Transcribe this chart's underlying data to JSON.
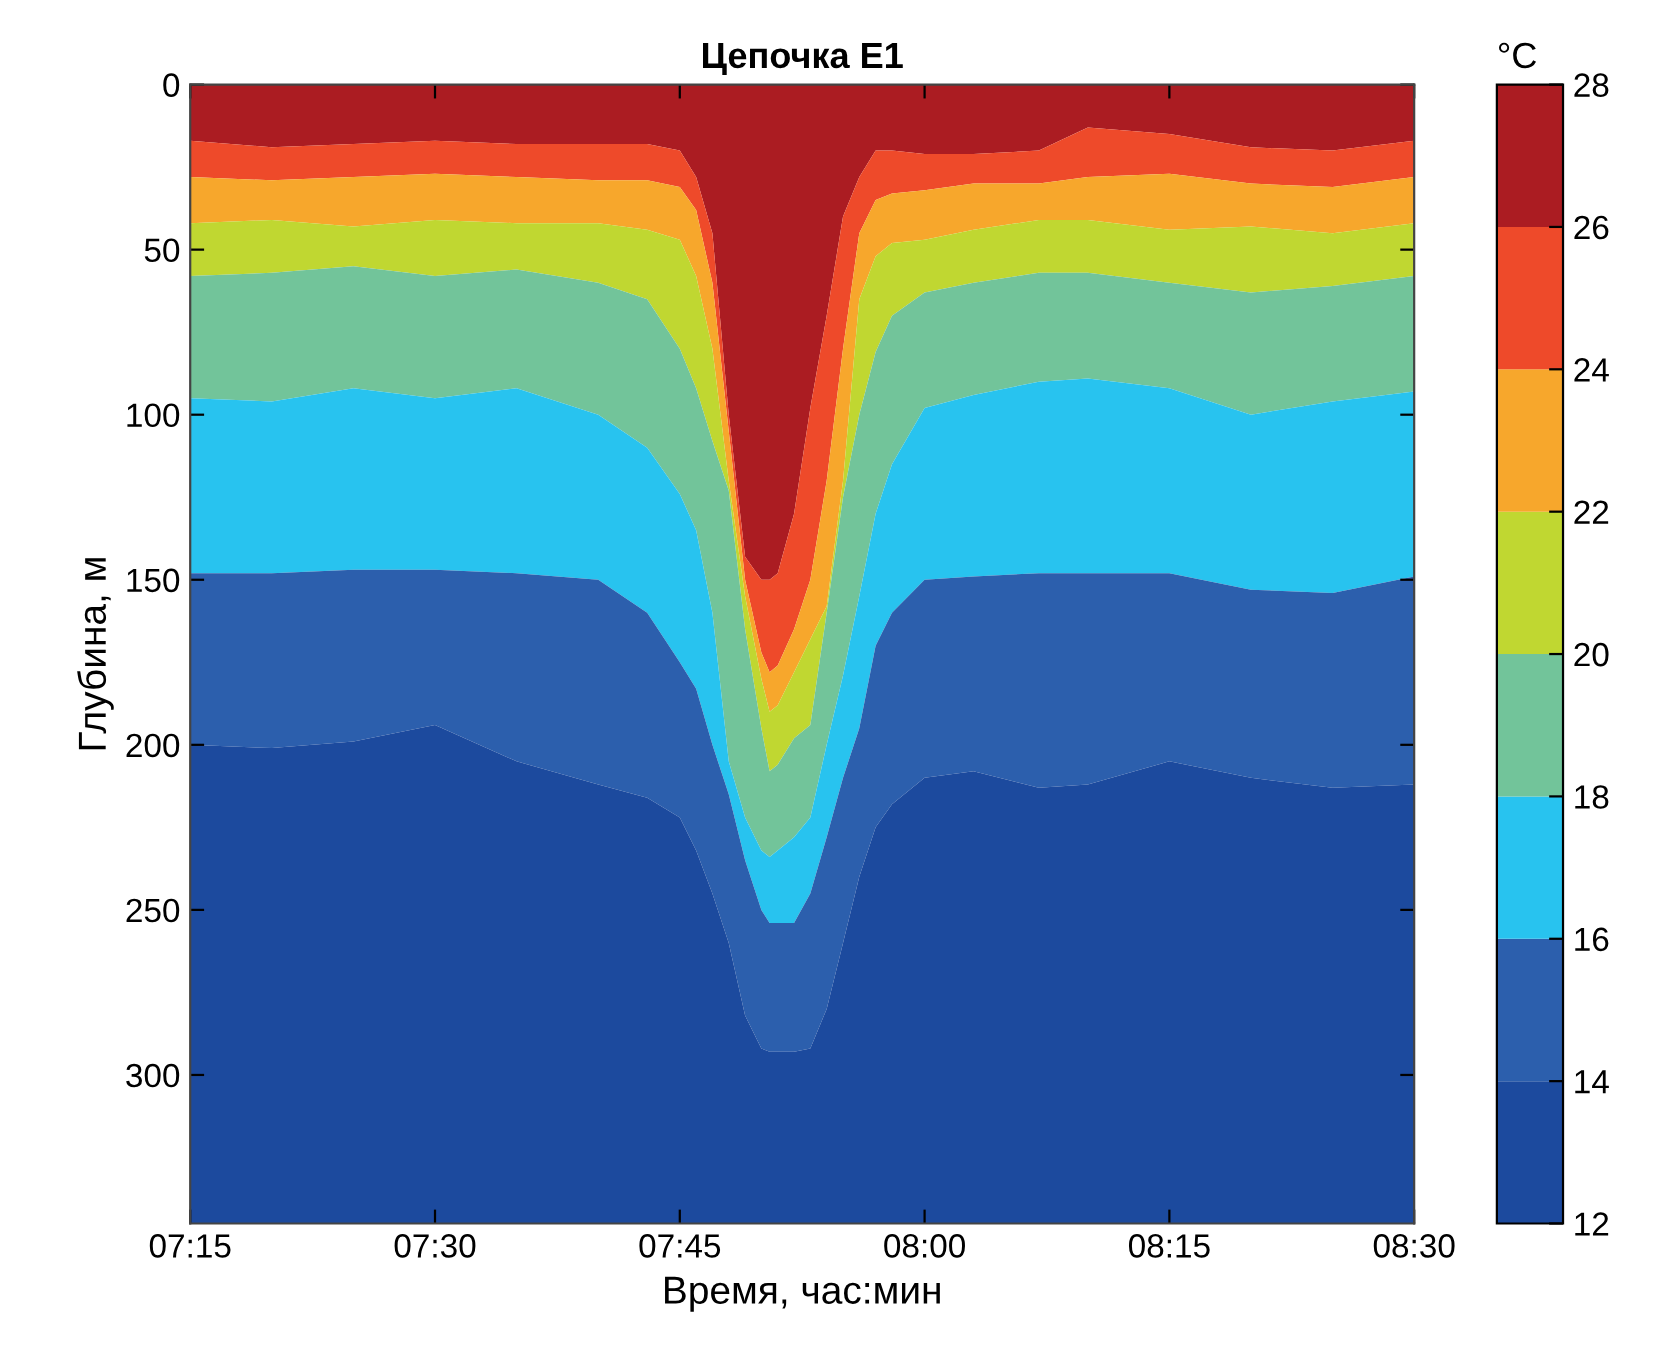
{
  "chart_data": {
    "type": "area",
    "title": "Цепочка E1",
    "xlabel": "Время, час:мин",
    "ylabel": "Глубина, м",
    "clabel": "°C",
    "x": [
      7.25,
      7.3333,
      7.4167,
      7.5,
      7.5833,
      7.6667,
      7.7167,
      7.75,
      7.7667,
      7.7833,
      7.8,
      7.8167,
      7.8333,
      7.8417,
      7.85,
      7.8667,
      7.8833,
      7.9,
      7.9167,
      7.9333,
      7.95,
      7.9667,
      8.0,
      8.05,
      8.1167,
      8.1667,
      8.25,
      8.3333,
      8.4167,
      8.5
    ],
    "series": [
      {
        "color": "#ab1c22",
        "values": [
          17,
          19,
          18,
          17,
          18,
          18,
          18,
          20,
          28,
          45,
          100,
          143,
          150,
          150,
          148,
          130,
          98,
          70,
          40,
          28,
          20,
          20,
          21,
          21,
          20,
          13,
          15,
          19,
          20,
          17
        ]
      },
      {
        "color": "#ee4a2a",
        "values": [
          11,
          10,
          10,
          10,
          10,
          11,
          11,
          11,
          10,
          15,
          5,
          7,
          22,
          28,
          28,
          35,
          52,
          50,
          40,
          17,
          15,
          13,
          11,
          9,
          10,
          15,
          12,
          11,
          11,
          11
        ]
      },
      {
        "color": "#f7a72c",
        "values": [
          14,
          12,
          15,
          14,
          14,
          13,
          15,
          16,
          20,
          20,
          15,
          5,
          8,
          12,
          12,
          13,
          18,
          38,
          40,
          20,
          17,
          15,
          15,
          14,
          11,
          13,
          17,
          13,
          14,
          14
        ]
      },
      {
        "color": "#c0d731",
        "values": [
          16,
          16,
          12,
          17,
          14,
          18,
          21,
          33,
          34,
          28,
          3,
          10,
          15,
          18,
          18,
          20,
          26,
          2,
          5,
          35,
          29,
          22,
          16,
          16,
          16,
          16,
          16,
          20,
          16,
          16
        ]
      },
      {
        "color": "#72c49a",
        "values": [
          37,
          39,
          37,
          37,
          36,
          40,
          45,
          44,
          43,
          52,
          82,
          57,
          37,
          26,
          26,
          30,
          28,
          40,
          54,
          55,
          49,
          45,
          35,
          34,
          33,
          32,
          32,
          37,
          35,
          35
        ]
      },
      {
        "color": "#28c3ef",
        "values": [
          53,
          52,
          55,
          52,
          56,
          50,
          50,
          51,
          48,
          40,
          10,
          13,
          18,
          20,
          22,
          26,
          23,
          28,
          31,
          40,
          40,
          45,
          52,
          55,
          58,
          59,
          56,
          53,
          58,
          56
        ]
      },
      {
        "color": "#2c5fad",
        "values": [
          52,
          53,
          52,
          47,
          57,
          62,
          56,
          47,
          49,
          45,
          45,
          47,
          42,
          39,
          39,
          39,
          47,
          52,
          50,
          45,
          55,
          58,
          60,
          59,
          65,
          64,
          57,
          57,
          59,
          63
        ]
      },
      {
        "color": "#1c4a9e",
        "values": [
          145,
          144,
          146,
          151,
          140,
          133,
          129,
          123,
          113,
          100,
          85,
          63,
          53,
          52,
          52,
          52,
          53,
          65,
          85,
          105,
          120,
          127,
          135,
          137,
          132,
          133,
          140,
          135,
          132,
          133
        ]
      }
    ],
    "stacked": true,
    "xlim": [
      7.25,
      8.5
    ],
    "xticks": [
      {
        "value": 7.25,
        "label": "07:15"
      },
      {
        "value": 7.5,
        "label": "07:30"
      },
      {
        "value": 7.75,
        "label": "07:45"
      },
      {
        "value": 8.0,
        "label": "08:00"
      },
      {
        "value": 8.25,
        "label": "08:15"
      },
      {
        "value": 8.5,
        "label": "08:30"
      }
    ],
    "ylim": [
      345,
      0
    ],
    "yticks": [
      0,
      50,
      100,
      150,
      200,
      250,
      300
    ],
    "clim": [
      12,
      28
    ],
    "cticks": [
      12,
      14,
      16,
      18,
      20,
      22,
      24,
      26,
      28
    ],
    "grid": false,
    "legend": false
  }
}
